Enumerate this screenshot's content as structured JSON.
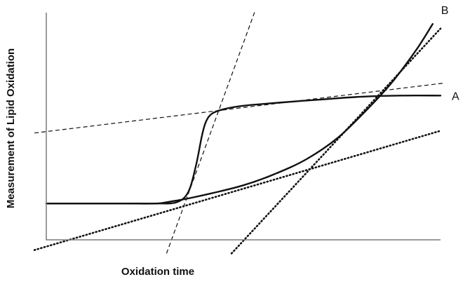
{
  "chart_data": {
    "type": "line",
    "title": "",
    "xlabel": "Oxidation time",
    "ylabel": "Measurement of Lipid Oxidation",
    "xlim": [
      0,
      100
    ],
    "ylim": [
      0,
      100
    ],
    "grid": false,
    "legend": "none",
    "series": [
      {
        "name": "A",
        "style": "solid",
        "points": [
          [
            0,
            16
          ],
          [
            10,
            16
          ],
          [
            20,
            16
          ],
          [
            28,
            16
          ],
          [
            33,
            16.5
          ],
          [
            36,
            21
          ],
          [
            38,
            33
          ],
          [
            39.5,
            46
          ],
          [
            40.5,
            52
          ],
          [
            42,
            55.5
          ],
          [
            45,
            57.5
          ],
          [
            50,
            59
          ],
          [
            60,
            60.5
          ],
          [
            70,
            61.8
          ],
          [
            80,
            63
          ],
          [
            90,
            63.5
          ],
          [
            100,
            63.5
          ]
        ]
      },
      {
        "name": "B",
        "style": "solid",
        "points": [
          [
            0,
            16
          ],
          [
            10,
            16
          ],
          [
            20,
            16
          ],
          [
            28,
            16
          ],
          [
            32,
            17
          ],
          [
            36,
            18.2
          ],
          [
            42,
            20.5
          ],
          [
            50,
            24
          ],
          [
            58,
            29
          ],
          [
            66,
            35.5
          ],
          [
            74,
            45
          ],
          [
            82,
            58.5
          ],
          [
            88,
            70
          ],
          [
            94,
            84
          ],
          [
            98,
            95
          ]
        ]
      }
    ],
    "guide_lines": [
      {
        "style": "dashed",
        "points": [
          [
            -3,
            47
          ],
          [
            101,
            69
          ]
        ]
      },
      {
        "style": "dashed",
        "points": [
          [
            30.5,
            -6
          ],
          [
            53,
            101
          ]
        ]
      },
      {
        "style": "dotted",
        "points": [
          [
            -3,
            -4.5
          ],
          [
            100,
            48
          ]
        ]
      },
      {
        "style": "dotted",
        "points": [
          [
            47,
            -6
          ],
          [
            100,
            93
          ]
        ]
      }
    ]
  }
}
